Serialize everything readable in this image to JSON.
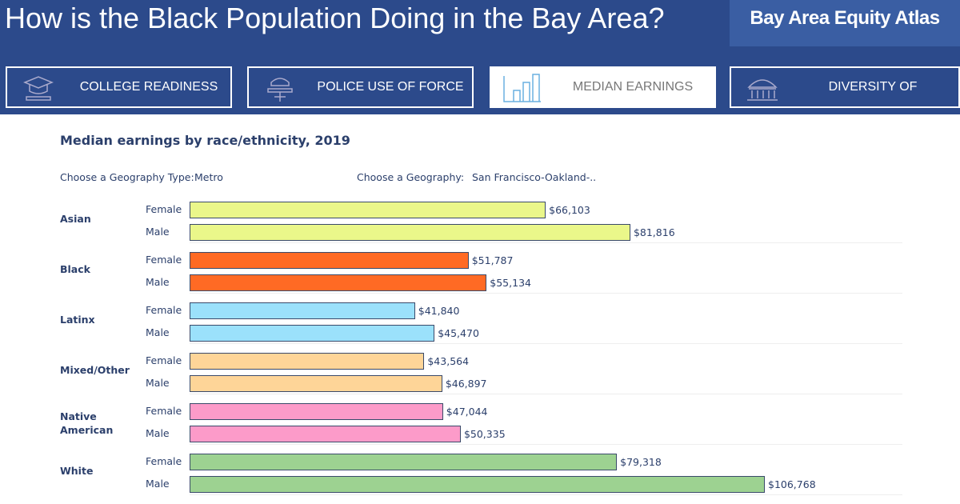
{
  "header": {
    "title": "How is the Black Population Doing in the Bay Area?",
    "logo": "Bay Area Equity Atlas"
  },
  "tabs": [
    "COLLEGE READINESS",
    "POLICE USE OF FORCE",
    "MEDIAN EARNINGS",
    "DIVERSITY OF ELECTEDS"
  ],
  "active_tab": "MEDIAN EARNINGS",
  "chart_data": {
    "type": "bar",
    "orientation": "horizontal",
    "title": "Median earnings by race/ethnicity, 2019",
    "filters": [
      {
        "label": "Choose a Geography Type:",
        "value": "Metro"
      },
      {
        "label": "Choose a Geography:",
        "value": "San Francisco-Oakland-.."
      }
    ],
    "groups": [
      {
        "name": "Asian",
        "color": "#eaf78a",
        "categories": [
          "Female",
          "Male"
        ],
        "values": [
          66103,
          81816
        ],
        "value_labels": [
          "$66,103",
          "$81,816"
        ]
      },
      {
        "name": "Black",
        "color": "#ff6a24",
        "categories": [
          "Female",
          "Male"
        ],
        "values": [
          51787,
          55134
        ],
        "value_labels": [
          "$51,787",
          "$55,134"
        ]
      },
      {
        "name": "Latinx",
        "color": "#9be1fb",
        "categories": [
          "Female",
          "Male"
        ],
        "values": [
          41840,
          45470
        ],
        "value_labels": [
          "$41,840",
          "$45,470"
        ]
      },
      {
        "name": "Mixed/Other",
        "color": "#fed598",
        "categories": [
          "Female",
          "Male"
        ],
        "values": [
          43564,
          46897
        ],
        "value_labels": [
          "$43,564",
          "$46,897"
        ]
      },
      {
        "name": "Native American",
        "color": "#fc9bc9",
        "categories": [
          "Female",
          "Male"
        ],
        "values": [
          47044,
          50335
        ],
        "value_labels": [
          "$47,044",
          "$50,335"
        ]
      },
      {
        "name": "White",
        "color": "#9dd291",
        "categories": [
          "Female",
          "Male"
        ],
        "values": [
          79318,
          106768
        ],
        "value_labels": [
          "$79,318",
          "$106,768"
        ]
      }
    ]
  }
}
